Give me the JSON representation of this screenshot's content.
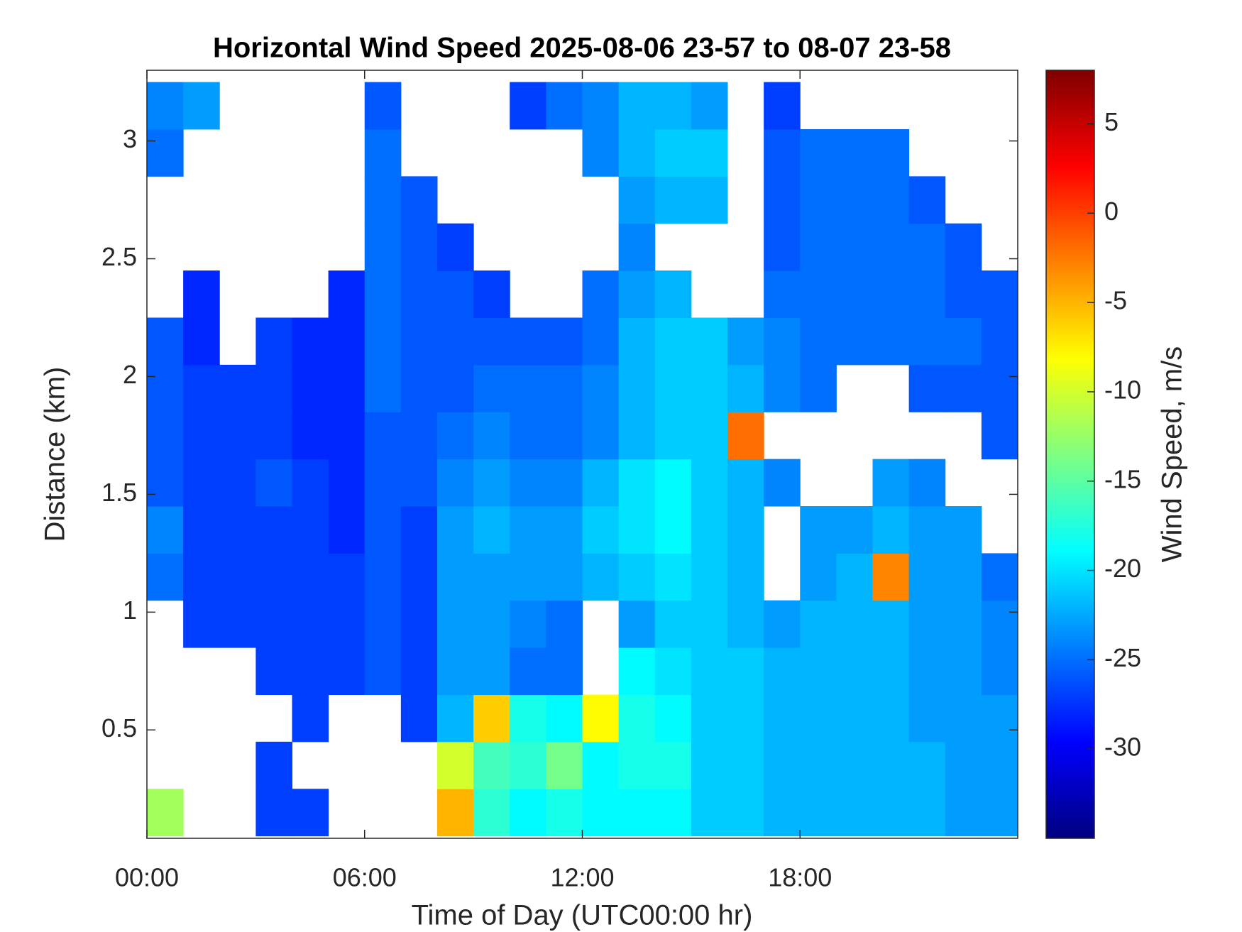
{
  "chart_data": {
    "type": "heatmap",
    "title": "Horizontal Wind Speed 2025-08-06 23-57 to 08-07 23-58",
    "x_label": "Time of Day (UTC00:00 hr)",
    "y_label": "Distance (km)",
    "colorbar_label": "Wind Speed, m/s",
    "colormap": "jet",
    "xlim": [
      0,
      24
    ],
    "xticks": [
      {
        "value": 0,
        "label": "00:00"
      },
      {
        "value": 6,
        "label": "06:00"
      },
      {
        "value": 12,
        "label": "12:00"
      },
      {
        "value": 18,
        "label": "18:00"
      }
    ],
    "ylim": [
      0.04,
      3.3
    ],
    "yticks": [
      0.5,
      1,
      1.5,
      2,
      2.5,
      3
    ],
    "clim": [
      -35,
      8
    ],
    "cticks": [
      -30,
      -25,
      -20,
      -15,
      -10,
      -5,
      0,
      5
    ],
    "x": [
      0.5,
      1.5,
      2.5,
      3.5,
      4.5,
      5.5,
      6.5,
      7.5,
      8.5,
      9.5,
      10.5,
      11.5,
      12.5,
      13.5,
      14.5,
      15.5,
      16.5,
      17.5,
      18.5,
      19.5,
      20.5,
      21.5,
      22.5,
      23.5
    ],
    "y": [
      0.15,
      0.35,
      0.55,
      0.75,
      0.95,
      1.15,
      1.35,
      1.55,
      1.75,
      1.95,
      2.15,
      2.35,
      2.55,
      2.75,
      2.95,
      3.15
    ],
    "z": [
      [
        -12,
        null,
        null,
        -27,
        -27,
        null,
        null,
        null,
        -5,
        -17,
        -19,
        -18,
        -19,
        -19,
        -19,
        -21,
        -21,
        -22,
        -22,
        -22,
        -22,
        -22,
        -23,
        -23
      ],
      [
        null,
        null,
        null,
        -27,
        null,
        null,
        null,
        null,
        -10,
        -16,
        -17,
        -14,
        -19,
        -18,
        -18,
        -21,
        -21,
        -22,
        -22,
        -22,
        -22,
        -22,
        -23,
        -23
      ],
      [
        null,
        null,
        null,
        null,
        -27,
        null,
        null,
        -27,
        -22,
        -6,
        -18,
        -19,
        -8,
        -18,
        -19,
        -21,
        -21,
        -22,
        -22,
        -22,
        -22,
        -23,
        -23,
        -23
      ],
      [
        null,
        null,
        null,
        -27,
        -27,
        -27,
        -26,
        -27,
        -23,
        -23,
        -25,
        -25,
        null,
        -19,
        -20,
        -21,
        -21,
        -22,
        -22,
        -22,
        -22,
        -23,
        -23,
        -24
      ],
      [
        null,
        -27,
        -27,
        -27,
        -27,
        -27,
        -26,
        -27,
        -23,
        -23,
        -24,
        -25,
        null,
        -23,
        -21,
        -21,
        -22,
        -23,
        -22,
        -22,
        -22,
        -23,
        -23,
        -24
      ],
      [
        -25,
        -27,
        -27,
        -27,
        -27,
        -27,
        -26,
        -27,
        -23,
        -23,
        -23,
        -23,
        -22,
        -21,
        -20,
        -21,
        -22,
        null,
        -23,
        -22,
        -3,
        -23,
        -23,
        -25
      ],
      [
        -24,
        -27,
        -27,
        -27,
        -27,
        -28,
        -26,
        -27,
        -23,
        -22,
        -23,
        -23,
        -21,
        -20,
        -19,
        -21,
        -22,
        null,
        -23,
        -23,
        -22,
        -23,
        -23,
        null
      ],
      [
        -26,
        -27,
        -27,
        -26,
        -27,
        -28,
        -26,
        -26,
        -24,
        -23,
        -24,
        -24,
        -22,
        -20,
        -19,
        -21,
        -22,
        -24,
        null,
        null,
        -23,
        -24,
        null,
        null
      ],
      [
        -26,
        -27,
        -27,
        -27,
        -28,
        -28,
        -26,
        -26,
        -25,
        -24,
        -25,
        -25,
        -24,
        -22,
        -21,
        -21,
        -2,
        null,
        null,
        null,
        null,
        null,
        null,
        -26
      ],
      [
        -26,
        -27,
        -27,
        -27,
        -28,
        -28,
        -25,
        -26,
        -26,
        -25,
        -25,
        -25,
        -24,
        -22,
        -21,
        -21,
        -22,
        -24,
        -25,
        null,
        null,
        -26,
        -26,
        -26
      ],
      [
        -26,
        -28,
        null,
        -27,
        -28,
        -28,
        -25,
        -26,
        -26,
        -26,
        -26,
        -26,
        -25,
        -22,
        -21,
        -21,
        -23,
        -24,
        -25,
        -25,
        -25,
        -25,
        -25,
        -26
      ],
      [
        null,
        -28,
        null,
        null,
        null,
        -28,
        -25,
        -26,
        -26,
        -27,
        null,
        null,
        -25,
        -23,
        -22,
        null,
        null,
        -25,
        -25,
        -25,
        -25,
        -25,
        -26,
        -26
      ],
      [
        null,
        null,
        null,
        null,
        null,
        null,
        -25,
        -26,
        -27,
        null,
        null,
        null,
        null,
        -24,
        null,
        null,
        null,
        -26,
        -25,
        -25,
        -25,
        -25,
        -26,
        null
      ],
      [
        null,
        null,
        null,
        null,
        null,
        null,
        -25,
        -26,
        null,
        null,
        null,
        null,
        null,
        -23,
        -22,
        -22,
        null,
        -26,
        -25,
        -25,
        -25,
        -26,
        null,
        null
      ],
      [
        -25,
        null,
        null,
        null,
        null,
        null,
        -25,
        null,
        null,
        null,
        null,
        null,
        -24,
        -22,
        -21,
        -21,
        null,
        -26,
        -25,
        -25,
        -25,
        null,
        null,
        null
      ],
      [
        -24,
        -23,
        null,
        null,
        null,
        null,
        -26,
        null,
        null,
        null,
        -27,
        -25,
        -24,
        -22,
        -22,
        -23,
        null,
        -27,
        null,
        null,
        null,
        null,
        null,
        null
      ]
    ]
  }
}
